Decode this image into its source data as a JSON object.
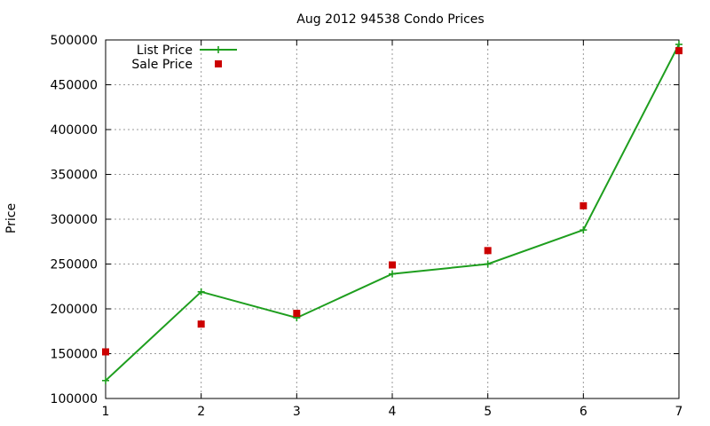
{
  "chart_data": {
    "type": "line",
    "title": "Aug 2012 94538 Condo Prices",
    "xlabel": "",
    "ylabel": "Price",
    "xlim": [
      1,
      7
    ],
    "ylim": [
      100000,
      500000
    ],
    "x_ticks": [
      1,
      2,
      3,
      4,
      5,
      6,
      7
    ],
    "x_tick_labels": [
      "1",
      "2",
      "3",
      "4",
      "5",
      "6",
      "7"
    ],
    "y_ticks": [
      100000,
      150000,
      200000,
      250000,
      300000,
      350000,
      400000,
      450000,
      500000
    ],
    "y_tick_labels": [
      "100000",
      "150000",
      "200000",
      "250000",
      "300000",
      "350000",
      "400000",
      "450000",
      "500000"
    ],
    "grid": true,
    "legend_position": "top-left",
    "series": [
      {
        "name": "List Price",
        "style": "line-with-plus-markers",
        "color": "#1e9e1e",
        "x": [
          1,
          2,
          3,
          4,
          5,
          6,
          7
        ],
        "values": [
          120000,
          219000,
          190000,
          239000,
          250000,
          288000,
          495000
        ]
      },
      {
        "name": "Sale Price",
        "style": "square-markers",
        "color": "#cc0000",
        "x": [
          1,
          2,
          3,
          4,
          5,
          6,
          7
        ],
        "values": [
          152000,
          183000,
          195000,
          249000,
          265000,
          315000,
          488000
        ]
      }
    ]
  }
}
